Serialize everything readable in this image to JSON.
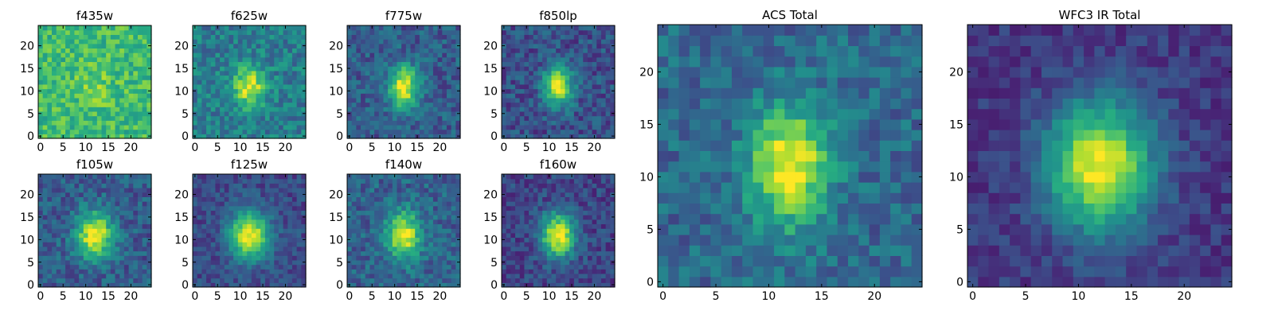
{
  "chart_data": [
    {
      "type": "heatmap",
      "title": "f435w",
      "x_ticks": [
        "0",
        "5",
        "10",
        "15",
        "20"
      ],
      "y_ticks": [
        "0",
        "5",
        "10",
        "15",
        "20"
      ],
      "xlim": [
        0,
        25
      ],
      "ylim": [
        0,
        25
      ],
      "colormap": "viridis",
      "peak": [
        12,
        11
      ],
      "note_values": "noise-dominated, bright on average"
    },
    {
      "type": "heatmap",
      "title": "f625w",
      "x_ticks": [
        "0",
        "5",
        "10",
        "15",
        "20"
      ],
      "y_ticks": [
        "0",
        "5",
        "10",
        "15",
        "20"
      ],
      "xlim": [
        0,
        25
      ],
      "ylim": [
        0,
        25
      ],
      "colormap": "viridis",
      "peak": [
        12,
        11
      ]
    },
    {
      "type": "heatmap",
      "title": "f775w",
      "x_ticks": [
        "0",
        "5",
        "10",
        "15",
        "20"
      ],
      "y_ticks": [
        "0",
        "5",
        "10",
        "15",
        "20"
      ],
      "xlim": [
        0,
        25
      ],
      "ylim": [
        0,
        25
      ],
      "colormap": "viridis",
      "peak": [
        12,
        11
      ]
    },
    {
      "type": "heatmap",
      "title": "f850lp",
      "x_ticks": [
        "0",
        "5",
        "10",
        "15",
        "20"
      ],
      "y_ticks": [
        "0",
        "5",
        "10",
        "15",
        "20"
      ],
      "xlim": [
        0,
        25
      ],
      "ylim": [
        0,
        25
      ],
      "colormap": "viridis",
      "peak": [
        12,
        11
      ]
    },
    {
      "type": "heatmap",
      "title": "f105w",
      "x_ticks": [
        "0",
        "5",
        "10",
        "15",
        "20"
      ],
      "y_ticks": [
        "0",
        "5",
        "10",
        "15",
        "20"
      ],
      "xlim": [
        0,
        25
      ],
      "ylim": [
        0,
        25
      ],
      "colormap": "viridis",
      "peak": [
        12,
        11
      ]
    },
    {
      "type": "heatmap",
      "title": "f125w",
      "x_ticks": [
        "0",
        "5",
        "10",
        "15",
        "20"
      ],
      "y_ticks": [
        "0",
        "5",
        "10",
        "15",
        "20"
      ],
      "xlim": [
        0,
        25
      ],
      "ylim": [
        0,
        25
      ],
      "colormap": "viridis",
      "peak": [
        12,
        11
      ]
    },
    {
      "type": "heatmap",
      "title": "f140w",
      "x_ticks": [
        "0",
        "5",
        "10",
        "15",
        "20"
      ],
      "y_ticks": [
        "0",
        "5",
        "10",
        "15",
        "20"
      ],
      "xlim": [
        0,
        25
      ],
      "ylim": [
        0,
        25
      ],
      "colormap": "viridis",
      "peak": [
        12,
        11
      ]
    },
    {
      "type": "heatmap",
      "title": "f160w",
      "x_ticks": [
        "0",
        "5",
        "10",
        "15",
        "20"
      ],
      "y_ticks": [
        "0",
        "5",
        "10",
        "15",
        "20"
      ],
      "xlim": [
        0,
        25
      ],
      "ylim": [
        0,
        25
      ],
      "colormap": "viridis",
      "peak": [
        12,
        11
      ]
    },
    {
      "type": "heatmap",
      "title": "ACS Total",
      "x_ticks": [
        "0",
        "5",
        "10",
        "15",
        "20"
      ],
      "y_ticks": [
        "0",
        "5",
        "10",
        "15",
        "20"
      ],
      "xlim": [
        0,
        25
      ],
      "ylim": [
        0,
        25
      ],
      "colormap": "viridis",
      "peak": [
        12,
        11
      ]
    },
    {
      "type": "heatmap",
      "title": "WFC3 IR Total",
      "x_ticks": [
        "0",
        "5",
        "10",
        "15",
        "20"
      ],
      "y_ticks": [
        "0",
        "5",
        "10",
        "15",
        "20"
      ],
      "xlim": [
        0,
        25
      ],
      "ylim": [
        0,
        25
      ],
      "colormap": "viridis",
      "peak": [
        12,
        11
      ]
    }
  ]
}
